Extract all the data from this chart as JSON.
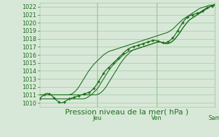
{
  "background_color": "#d8e8d8",
  "grid_color": "#a0c8a0",
  "line_color": "#1a6e1a",
  "marker_color": "#1a6e1a",
  "xlabel": "Pression niveau de la mer( hPa )",
  "xlabel_fontsize": 8,
  "tick_label_fontsize": 6,
  "day_labels": [
    "Jeu",
    "Ven",
    "Sam"
  ],
  "day_positions": [
    0.33,
    0.67,
    1.0
  ],
  "ylim": [
    1009.5,
    1022.5
  ],
  "yticks": [
    1010,
    1011,
    1012,
    1013,
    1014,
    1015,
    1016,
    1017,
    1018,
    1019,
    1020,
    1021,
    1022
  ],
  "xlim": [
    0,
    1
  ],
  "n_points": 72,
  "pressure_main": [
    1010.5,
    1010.8,
    1011.0,
    1011.2,
    1011.1,
    1010.9,
    1010.6,
    1010.3,
    1010.1,
    1010.0,
    1010.1,
    1010.3,
    1010.5,
    1010.6,
    1010.7,
    1010.8,
    1010.9,
    1011.0,
    1011.1,
    1011.2,
    1011.3,
    1011.5,
    1011.8,
    1012.2,
    1012.7,
    1013.2,
    1013.7,
    1014.1,
    1014.4,
    1014.7,
    1015.0,
    1015.3,
    1015.6,
    1015.9,
    1016.2,
    1016.5,
    1016.7,
    1016.9,
    1017.0,
    1017.1,
    1017.2,
    1017.3,
    1017.4,
    1017.5,
    1017.6,
    1017.7,
    1017.8,
    1017.8,
    1017.7,
    1017.6,
    1017.5,
    1017.5,
    1017.6,
    1017.8,
    1018.1,
    1018.5,
    1019.0,
    1019.5,
    1020.0,
    1020.4,
    1020.7,
    1020.9,
    1021.0,
    1021.1,
    1021.2,
    1021.3,
    1021.5,
    1021.7,
    1021.9,
    1022.0,
    1022.1,
    1022.2
  ],
  "pressure_upper": [
    1011.0,
    1011.0,
    1011.0,
    1011.0,
    1011.0,
    1011.0,
    1011.0,
    1011.0,
    1011.0,
    1011.0,
    1011.0,
    1011.0,
    1011.0,
    1011.1,
    1011.3,
    1011.6,
    1012.0,
    1012.5,
    1013.0,
    1013.5,
    1014.0,
    1014.4,
    1014.8,
    1015.1,
    1015.4,
    1015.7,
    1016.0,
    1016.2,
    1016.4,
    1016.5,
    1016.6,
    1016.7,
    1016.8,
    1016.9,
    1017.0,
    1017.1,
    1017.2,
    1017.3,
    1017.4,
    1017.5,
    1017.6,
    1017.7,
    1017.8,
    1017.9,
    1018.0,
    1018.1,
    1018.2,
    1018.3,
    1018.4,
    1018.5,
    1018.6,
    1018.7,
    1018.8,
    1019.0,
    1019.2,
    1019.5,
    1019.8,
    1020.1,
    1020.4,
    1020.6,
    1020.8,
    1021.0,
    1021.2,
    1021.4,
    1021.6,
    1021.8,
    1021.9,
    1022.0,
    1022.1,
    1022.2,
    1022.2,
    1022.3
  ],
  "pressure_lower": [
    1010.5,
    1010.5,
    1010.5,
    1010.5,
    1010.5,
    1010.5,
    1010.5,
    1010.5,
    1010.5,
    1010.5,
    1010.5,
    1010.5,
    1010.5,
    1010.5,
    1010.5,
    1010.5,
    1010.5,
    1010.5,
    1010.5,
    1010.6,
    1010.8,
    1011.0,
    1011.3,
    1011.6,
    1012.0,
    1012.5,
    1013.0,
    1013.5,
    1014.0,
    1014.4,
    1014.8,
    1015.1,
    1015.4,
    1015.7,
    1016.0,
    1016.2,
    1016.4,
    1016.5,
    1016.6,
    1016.7,
    1016.8,
    1016.9,
    1017.0,
    1017.1,
    1017.2,
    1017.3,
    1017.4,
    1017.5,
    1017.6,
    1017.6,
    1017.5,
    1017.4,
    1017.4,
    1017.5,
    1017.7,
    1018.0,
    1018.4,
    1018.8,
    1019.3,
    1019.7,
    1020.1,
    1020.4,
    1020.6,
    1020.8,
    1021.0,
    1021.2,
    1021.4,
    1021.6,
    1021.8,
    1022.0,
    1022.1,
    1022.2
  ],
  "pressure_mid": [
    1011.0,
    1011.0,
    1011.0,
    1011.0,
    1011.0,
    1011.0,
    1011.0,
    1011.0,
    1011.0,
    1011.0,
    1011.0,
    1011.0,
    1011.0,
    1011.0,
    1011.0,
    1011.0,
    1011.0,
    1011.0,
    1011.0,
    1011.0,
    1011.0,
    1011.0,
    1011.0,
    1011.0,
    1011.1,
    1011.3,
    1011.6,
    1012.0,
    1012.5,
    1013.0,
    1013.5,
    1014.0,
    1014.5,
    1015.0,
    1015.4,
    1015.8,
    1016.1,
    1016.4,
    1016.6,
    1016.7,
    1016.8,
    1016.9,
    1017.0,
    1017.1,
    1017.2,
    1017.3,
    1017.4,
    1017.5,
    1017.6,
    1017.6,
    1017.5,
    1017.4,
    1017.4,
    1017.5,
    1017.7,
    1018.0,
    1018.4,
    1018.8,
    1019.3,
    1019.7,
    1020.1,
    1020.4,
    1020.6,
    1020.8,
    1021.0,
    1021.2,
    1021.4,
    1021.6,
    1021.8,
    1022.0,
    1022.1,
    1022.2
  ]
}
